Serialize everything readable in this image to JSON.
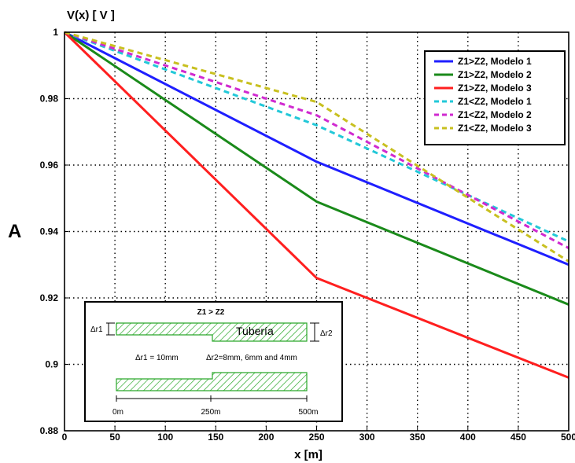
{
  "panel_label": "A",
  "chart_data": {
    "type": "line",
    "ylabel": "V(x) [ V ]",
    "xlabel": "x [m]",
    "xlim": [
      0,
      500
    ],
    "ylim": [
      0.88,
      1.0
    ],
    "xticks": [
      "0",
      "50",
      "100",
      "150",
      "200",
      "250",
      "300",
      "350",
      "400",
      "450",
      "500"
    ],
    "yticks": [
      "0.88",
      "0.9",
      "0.92",
      "0.94",
      "0.96",
      "0.98",
      "1"
    ],
    "grid": true,
    "legend_position": "top-right",
    "series": [
      {
        "name": "Z1>Z2, Modelo 1",
        "color": "#1f1fff",
        "dashed": false,
        "x": [
          0,
          250,
          500
        ],
        "y": [
          1.0,
          0.961,
          0.93
        ]
      },
      {
        "name": "Z1>Z2, Modelo 2",
        "color": "#1a8a1a",
        "dashed": false,
        "x": [
          0,
          250,
          500
        ],
        "y": [
          1.0,
          0.949,
          0.918
        ]
      },
      {
        "name": "Z1>Z2, Modelo 3",
        "color": "#ff1f1f",
        "dashed": false,
        "x": [
          0,
          250,
          500
        ],
        "y": [
          1.0,
          0.926,
          0.896
        ]
      },
      {
        "name": "Z1<Z2, Modelo 1",
        "color": "#22c8d8",
        "dashed": true,
        "x": [
          0,
          250,
          500
        ],
        "y": [
          1.0,
          0.972,
          0.937
        ]
      },
      {
        "name": "Z1<Z2, Modelo 2",
        "color": "#d02ad0",
        "dashed": true,
        "x": [
          0,
          250,
          500
        ],
        "y": [
          1.0,
          0.975,
          0.935
        ]
      },
      {
        "name": "Z1<Z2, Modelo 3",
        "color": "#c8c020",
        "dashed": true,
        "x": [
          0,
          250,
          500
        ],
        "y": [
          1.0,
          0.979,
          0.931
        ]
      }
    ]
  },
  "inset": {
    "title": "Z1 > Z2",
    "pipe_label": "Tubería",
    "dr1_label": "Δr1",
    "dr2_label": "Δr2",
    "dr1_value": "Δr1 = 10mm",
    "dr2_value": "Δr2=8mm, 6mm and 4mm",
    "pos_0": "0m",
    "pos_250": "250m",
    "pos_500": "500m",
    "hatch_color": "#2aa82a"
  }
}
